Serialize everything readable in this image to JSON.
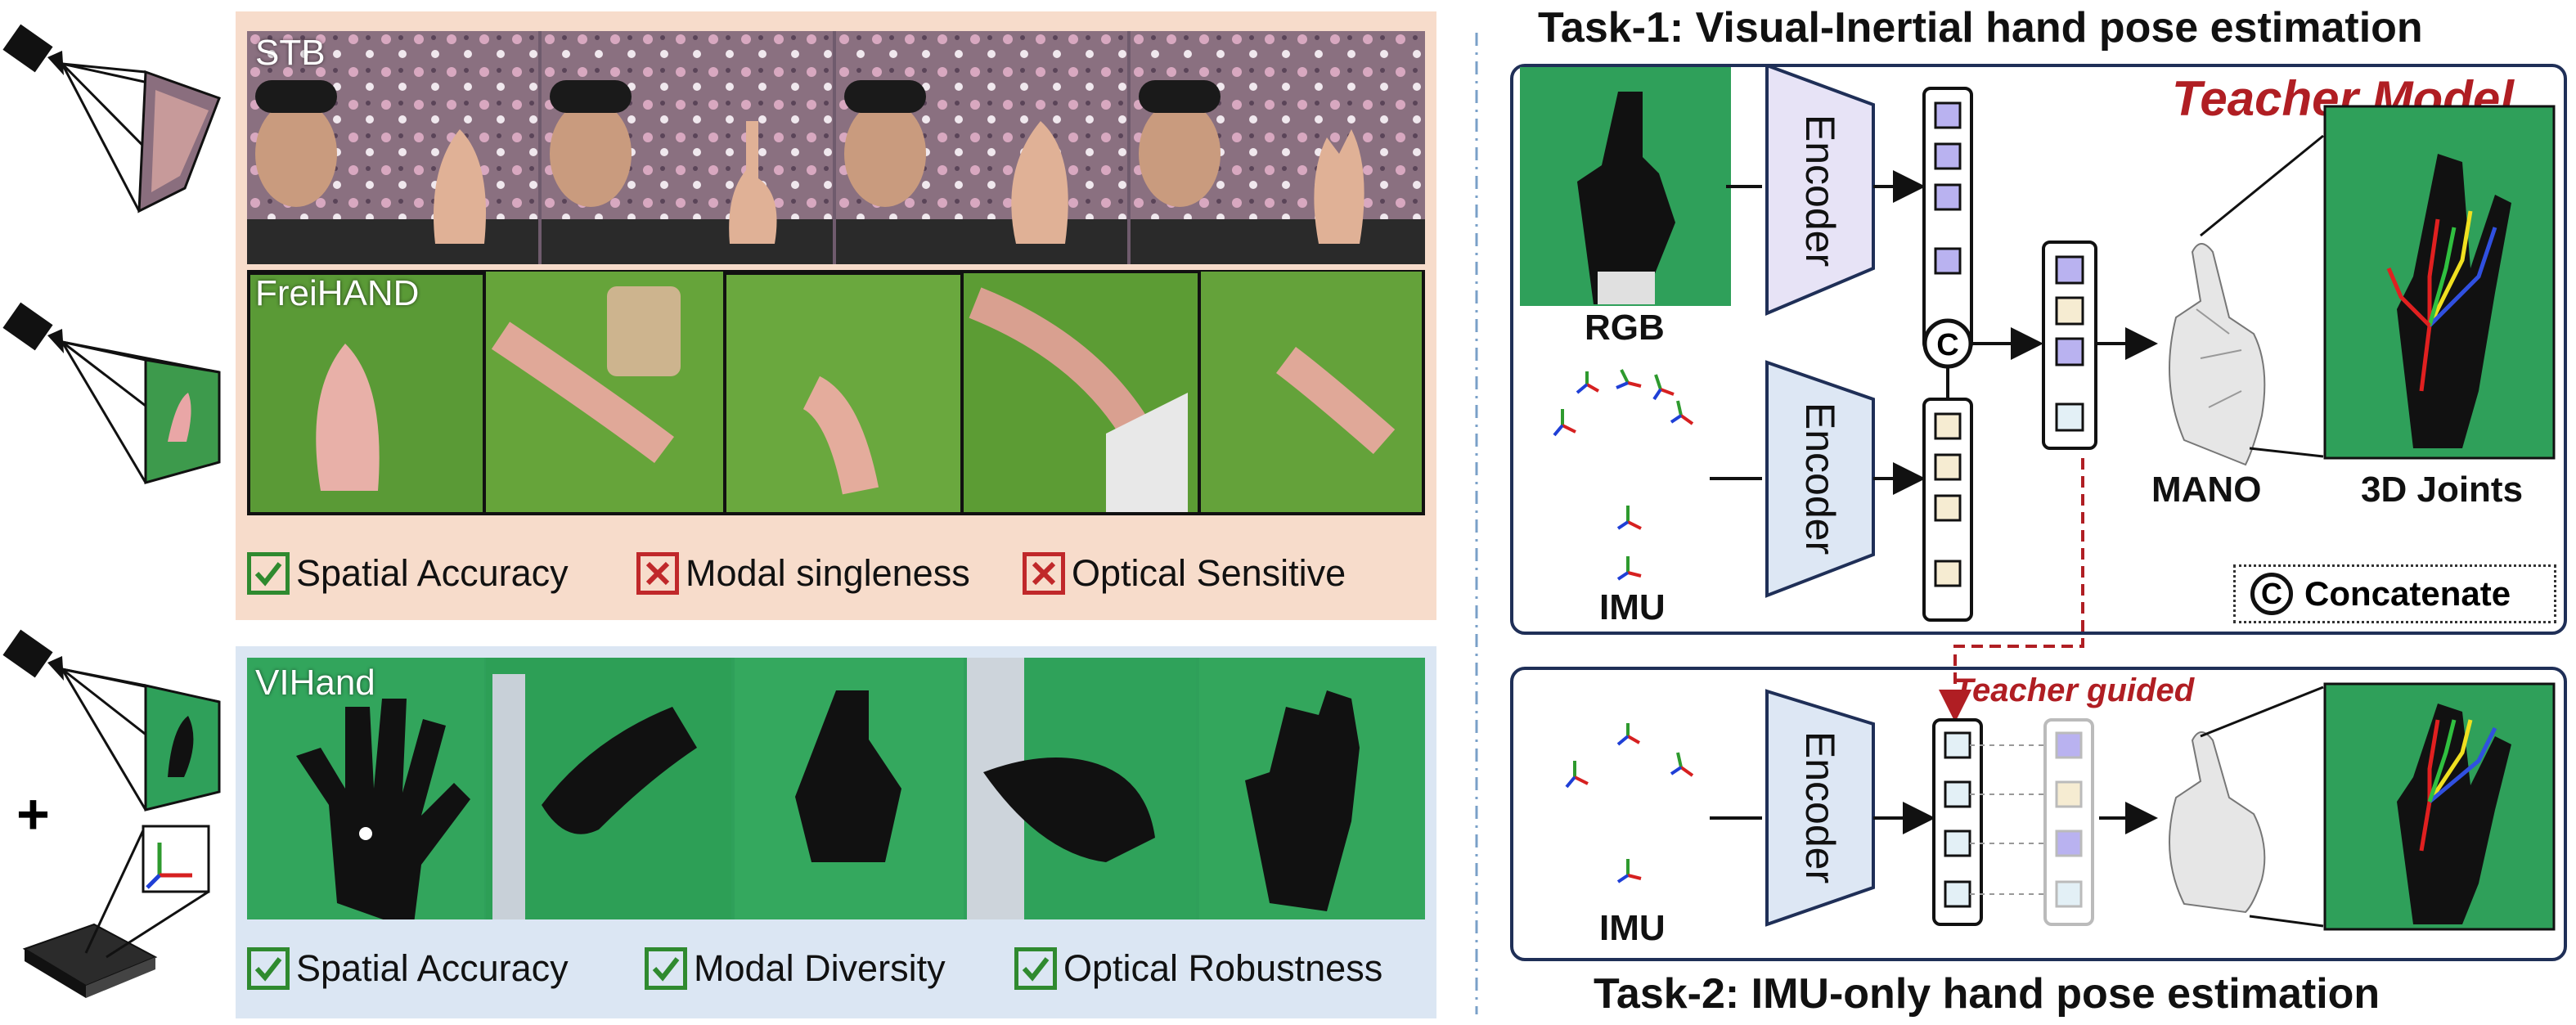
{
  "left": {
    "stb_label": "STB",
    "freihand_label": "FreiHAND",
    "vihand_label": "VIHand",
    "stb_tags": [
      {
        "text": "Spatial Accuracy",
        "status": "check"
      },
      {
        "text": "Modal singleness",
        "status": "cross"
      },
      {
        "text": "Optical Sensitive",
        "status": "cross"
      }
    ],
    "vihand_tags": [
      {
        "text": "Spatial Accuracy",
        "status": "check"
      },
      {
        "text": "Modal Diversity",
        "status": "check"
      },
      {
        "text": "Optical Robustness",
        "status": "check"
      }
    ],
    "plus_sign": "+"
  },
  "task1": {
    "title": "Task-1: Visual-Inertial hand pose estimation",
    "teacher_label": "Teacher Model",
    "rgb_label": "RGB",
    "imu_label": "IMU",
    "encoder_label": "Encoder",
    "concat_symbol": "C",
    "mano_label": "MANO",
    "joints_label": "3D Joints",
    "concat_legend": "Concatenate"
  },
  "task2": {
    "title": "Task-2: IMU-only hand pose estimation",
    "guided_label": "Teacher guided",
    "imu_label": "IMU",
    "encoder_label": "Encoder"
  },
  "colors": {
    "check_green": "#2f8a2f",
    "cross_red": "#c0282a",
    "teacher_red": "#b01e23",
    "frame_navy": "#1f2f57",
    "rgb_encoder_fill": "#e7e3f6",
    "imu_encoder_fill": "#dde7f4",
    "feature_purple": "#b9b2f0",
    "feature_beige": "#f6ecd2",
    "feature_light": "#e3f0f6",
    "green_screen": "#2fa05a",
    "stb_panel": "#f7dccb",
    "vihand_panel": "#dbe6f3"
  }
}
